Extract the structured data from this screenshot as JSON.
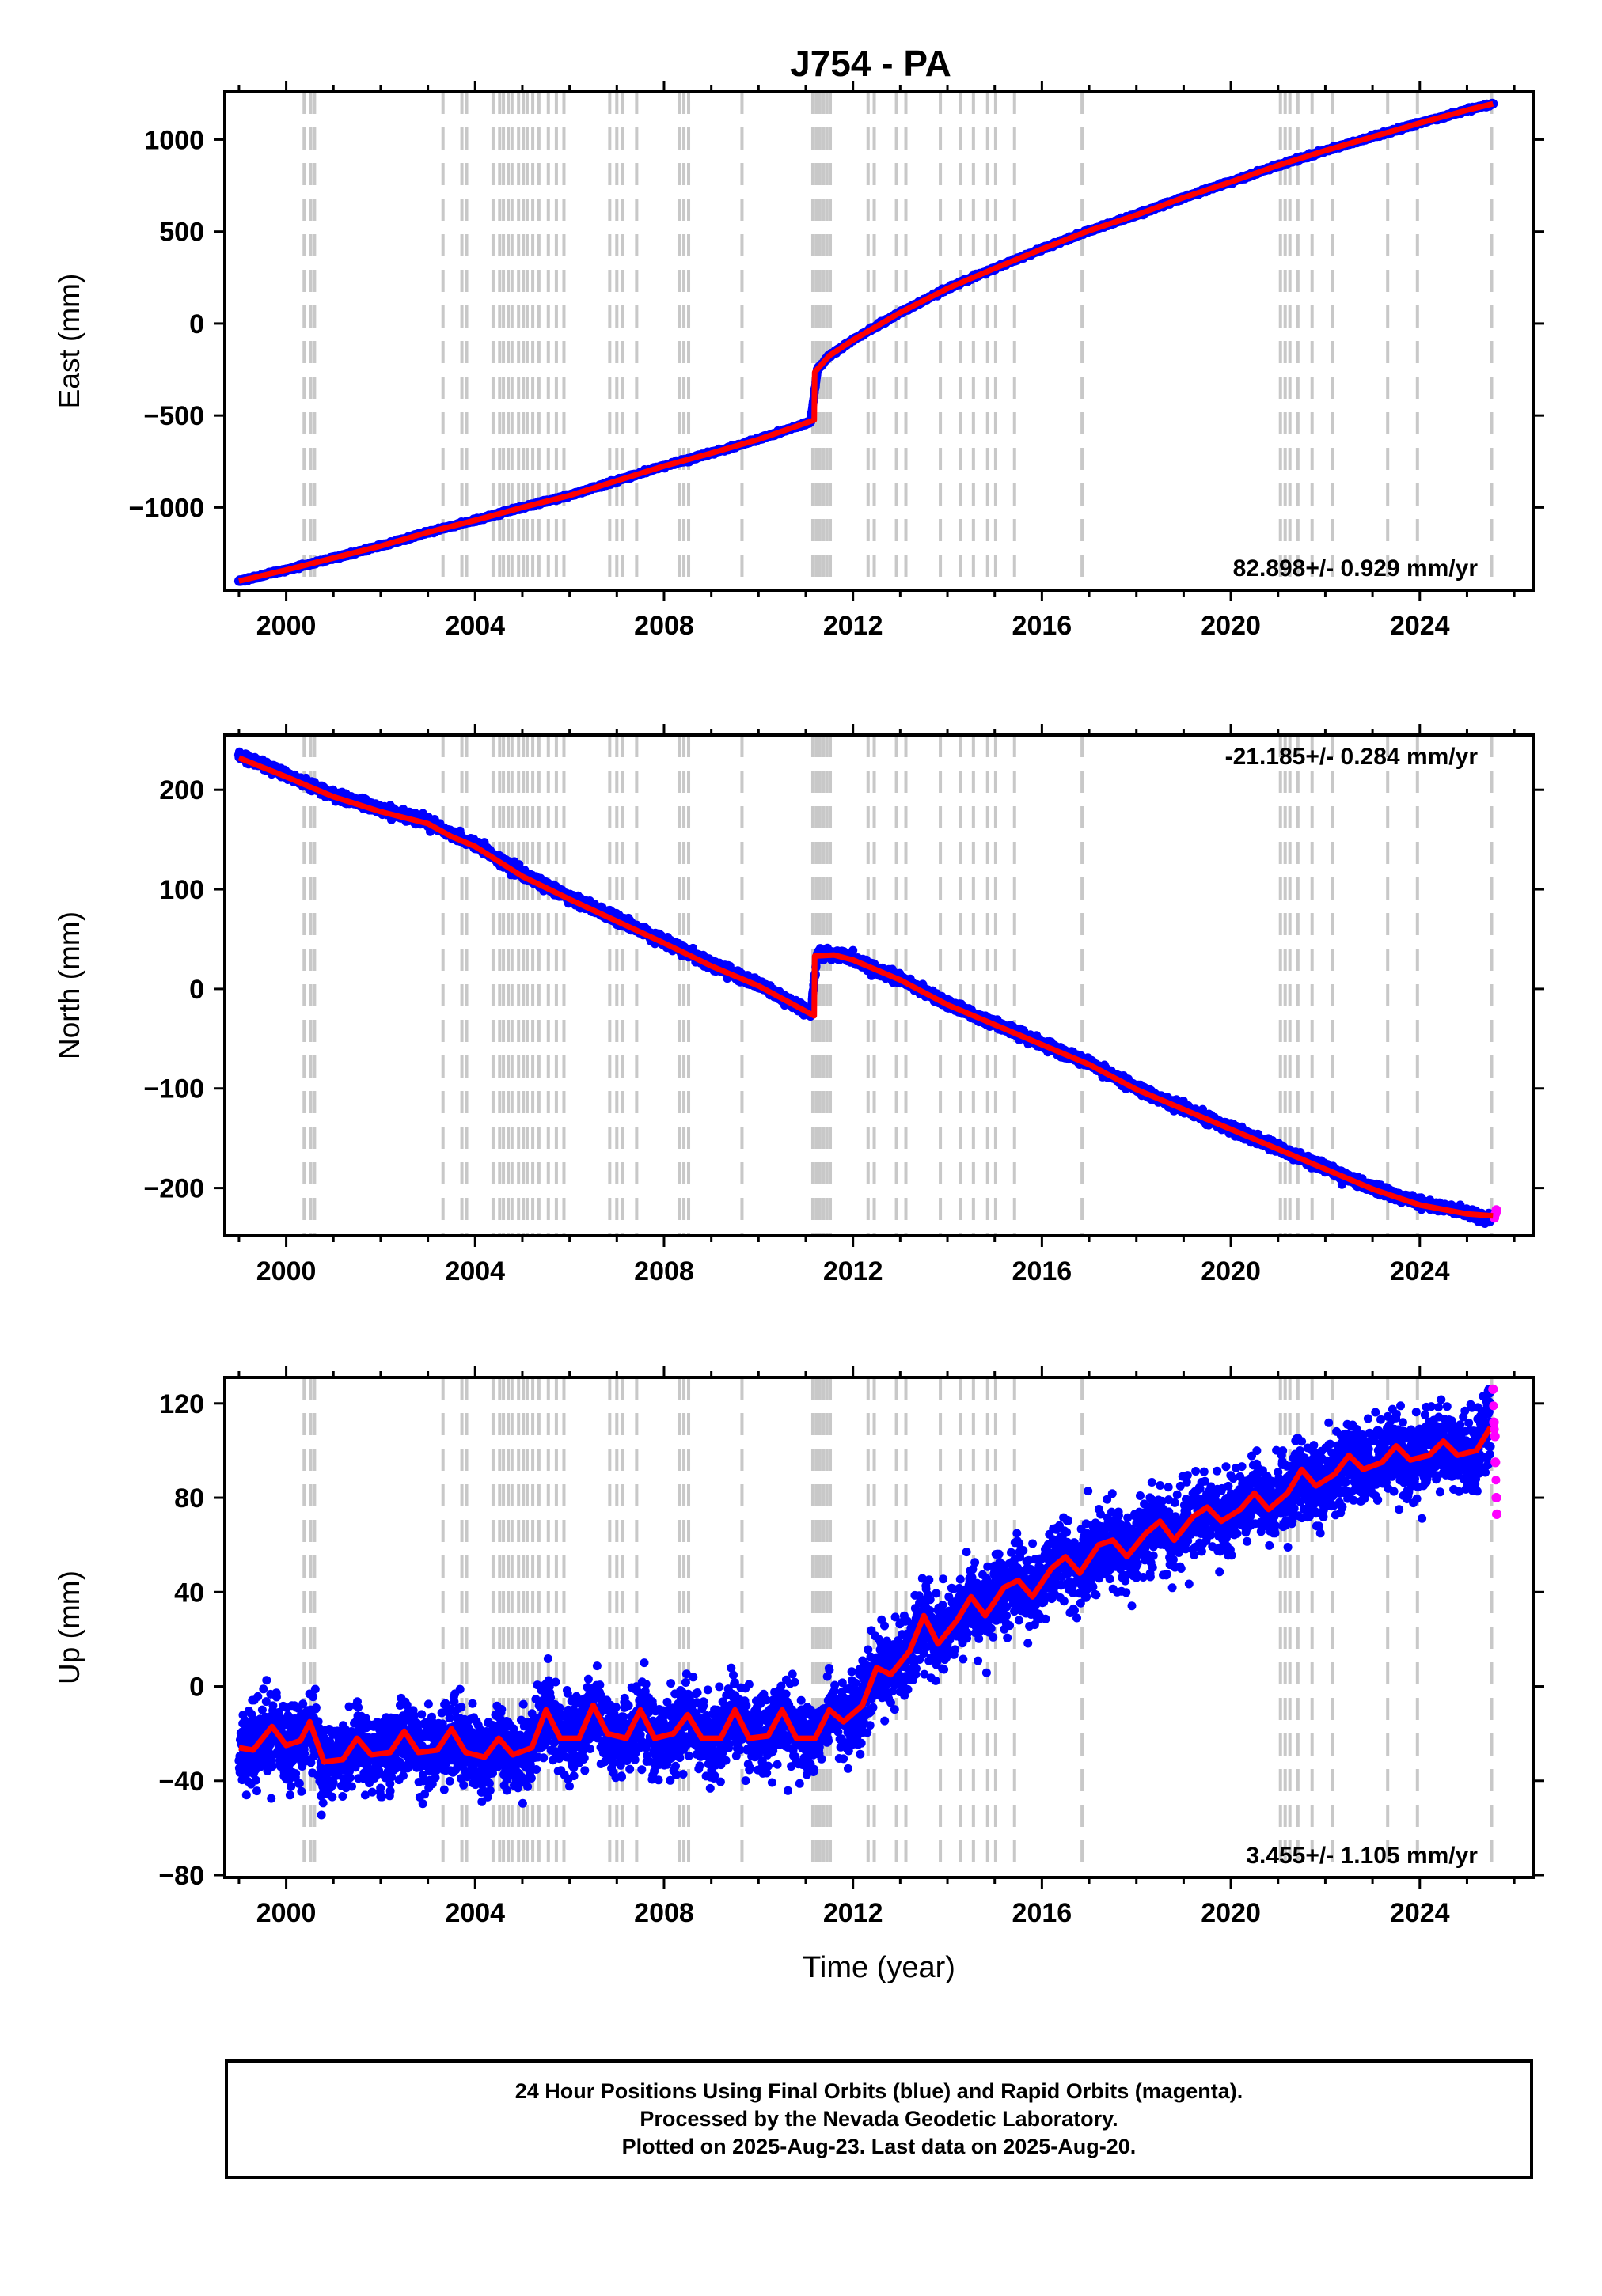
{
  "title": "J754 - PA",
  "colors": {
    "final": "#0000ff",
    "rapid": "#ff00ff",
    "model": "#ff0000",
    "event_line": "#c8c8c8",
    "frame": "#000000"
  },
  "chart_data": [
    {
      "type": "scatter",
      "ylabel": "East (mm)",
      "xlabel": "",
      "xlim": [
        1998.7,
        2026.4
      ],
      "ylim": [
        -1450,
        1260
      ],
      "xticks": [
        2000,
        2004,
        2008,
        2012,
        2016,
        2020,
        2024
      ],
      "yticks": [
        -1000,
        -500,
        0,
        500,
        1000
      ],
      "yticklabels": [
        "−1000",
        "−500",
        "0",
        "500",
        "1000"
      ],
      "rate_label": "82.898+/- 0.929 mm/yr",
      "rate_position": "bottom-right",
      "series": [
        {
          "style": "points",
          "color": "final",
          "x": [
            1999.0,
            2000.0,
            2001.0,
            2002.0,
            2003.0,
            2004.0,
            2005.0,
            2006.0,
            2007.0,
            2008.0,
            2009.0,
            2010.0,
            2011.1,
            2011.25,
            2011.5,
            2012.0,
            2013.0,
            2014.0,
            2015.0,
            2016.0,
            2017.0,
            2018.0,
            2019.0,
            2020.0,
            2021.0,
            2022.0,
            2023.0,
            2024.0,
            2025.0,
            2025.55
          ],
          "y": [
            -1400,
            -1340,
            -1275,
            -1210,
            -1135,
            -1070,
            -1000,
            -935,
            -855,
            -775,
            -705,
            -630,
            -535,
            -250,
            -175,
            -90,
            60,
            190,
            300,
            405,
            505,
            590,
            685,
            770,
            860,
            940,
            1015,
            1090,
            1160,
            1195
          ]
        },
        {
          "style": "line",
          "color": "model",
          "x": [
            1999.0,
            2000.0,
            2001.0,
            2002.0,
            2003.0,
            2004.0,
            2005.0,
            2006.0,
            2007.0,
            2008.0,
            2009.0,
            2010.0,
            2011.18,
            2011.19,
            2011.5,
            2012.0,
            2013.0,
            2014.0,
            2015.0,
            2016.0,
            2017.0,
            2018.0,
            2019.0,
            2020.0,
            2021.0,
            2022.0,
            2023.0,
            2024.0,
            2025.0,
            2025.55
          ],
          "y": [
            -1400,
            -1340,
            -1275,
            -1210,
            -1135,
            -1070,
            -1000,
            -935,
            -855,
            -775,
            -705,
            -630,
            -525,
            -265,
            -175,
            -90,
            60,
            190,
            300,
            405,
            505,
            590,
            685,
            770,
            860,
            940,
            1015,
            1090,
            1160,
            1195
          ]
        }
      ]
    },
    {
      "type": "scatter",
      "ylabel": "North (mm)",
      "xlabel": "",
      "xlim": [
        1998.7,
        2026.4
      ],
      "ylim": [
        -248,
        255
      ],
      "xticks": [
        2000,
        2004,
        2008,
        2012,
        2016,
        2020,
        2024
      ],
      "yticks": [
        -200,
        -100,
        0,
        100,
        200
      ],
      "yticklabels": [
        "−200",
        "−100",
        "0",
        "100",
        "200"
      ],
      "rate_label": "-21.185+/- 0.284 mm/yr",
      "rate_position": "top-right",
      "series": [
        {
          "style": "points",
          "color": "final",
          "x": [
            1999.0,
            2000.0,
            2001.0,
            2002.0,
            2003.0,
            2003.5,
            2004.0,
            2005.0,
            2006.0,
            2007.0,
            2008.0,
            2009.0,
            2010.0,
            2011.1,
            2011.25,
            2011.6,
            2012.0,
            2013.0,
            2014.0,
            2015.0,
            2016.0,
            2017.0,
            2018.0,
            2019.0,
            2020.0,
            2021.0,
            2022.0,
            2023.0,
            2024.0,
            2025.0,
            2025.5
          ],
          "y": [
            235,
            215,
            195,
            180,
            168,
            155,
            145,
            115,
            92,
            70,
            48,
            25,
            5,
            -25,
            35,
            35,
            30,
            10,
            -15,
            -35,
            -55,
            -75,
            -100,
            -120,
            -140,
            -160,
            -180,
            -200,
            -215,
            -225,
            -232
          ]
        },
        {
          "style": "points",
          "color": "rapid",
          "x": [
            2025.58,
            2025.6,
            2025.62
          ],
          "y": [
            -230,
            -226,
            -222
          ]
        },
        {
          "style": "line",
          "color": "model",
          "x": [
            1999.0,
            2000.0,
            2001.0,
            2002.0,
            2003.0,
            2003.5,
            2004.0,
            2005.0,
            2006.0,
            2007.0,
            2008.0,
            2009.0,
            2010.0,
            2011.18,
            2011.19,
            2011.6,
            2012.0,
            2013.0,
            2014.0,
            2015.0,
            2016.0,
            2017.0,
            2018.0,
            2019.0,
            2020.0,
            2021.0,
            2022.0,
            2023.0,
            2024.0,
            2025.0,
            2025.55
          ],
          "y": [
            232,
            213,
            193,
            178,
            166,
            153,
            143,
            113,
            90,
            68,
            46,
            23,
            3,
            -27,
            33,
            34,
            29,
            9,
            -16,
            -36,
            -56,
            -76,
            -101,
            -121,
            -141,
            -161,
            -181,
            -201,
            -217,
            -226,
            -228
          ]
        }
      ]
    },
    {
      "type": "scatter",
      "ylabel": "Up (mm)",
      "xlabel": "Time (year)",
      "xlim": [
        1998.7,
        2026.4
      ],
      "ylim": [
        -81,
        131
      ],
      "xticks": [
        2000,
        2004,
        2008,
        2012,
        2016,
        2020,
        2024
      ],
      "yticks": [
        -80,
        -40,
        0,
        40,
        80,
        120
      ],
      "yticklabels": [
        "−80",
        "−40",
        "0",
        "40",
        "80",
        "120"
      ],
      "rate_label": "3.455+/- 1.105 mm/yr",
      "rate_position": "bottom-right",
      "noise_sd_mm": 8,
      "series": [
        {
          "style": "line",
          "color": "model",
          "x": [
            1999.0,
            1999.3,
            1999.7,
            2000.0,
            2000.3,
            2000.5,
            2000.8,
            2001.2,
            2001.5,
            2001.8,
            2002.2,
            2002.5,
            2002.8,
            2003.2,
            2003.5,
            2003.8,
            2004.2,
            2004.5,
            2004.8,
            2005.2,
            2005.5,
            2005.8,
            2006.2,
            2006.5,
            2006.8,
            2007.2,
            2007.5,
            2007.8,
            2008.2,
            2008.5,
            2008.8,
            2009.2,
            2009.5,
            2009.8,
            2010.2,
            2010.5,
            2010.8,
            2011.2,
            2011.5,
            2011.8,
            2012.2,
            2012.5,
            2012.8,
            2013.2,
            2013.5,
            2013.8,
            2014.2,
            2014.5,
            2014.8,
            2015.2,
            2015.5,
            2015.8,
            2016.2,
            2016.5,
            2016.8,
            2017.2,
            2017.5,
            2017.8,
            2018.2,
            2018.5,
            2018.8,
            2019.2,
            2019.5,
            2019.8,
            2020.2,
            2020.5,
            2020.8,
            2021.2,
            2021.5,
            2021.8,
            2022.2,
            2022.5,
            2022.8,
            2023.2,
            2023.5,
            2023.8,
            2024.2,
            2024.5,
            2024.8,
            2025.2,
            2025.5
          ],
          "y": [
            -26,
            -27,
            -17,
            -25,
            -23,
            -15,
            -32,
            -31,
            -22,
            -29,
            -28,
            -19,
            -28,
            -27,
            -18,
            -28,
            -30,
            -22,
            -29,
            -26,
            -10,
            -22,
            -22,
            -8,
            -20,
            -22,
            -10,
            -22,
            -20,
            -12,
            -22,
            -22,
            -10,
            -22,
            -21,
            -10,
            -22,
            -22,
            -10,
            -15,
            -8,
            8,
            5,
            15,
            30,
            18,
            28,
            38,
            30,
            42,
            45,
            38,
            50,
            55,
            48,
            60,
            62,
            55,
            65,
            70,
            62,
            72,
            76,
            70,
            75,
            82,
            75,
            82,
            92,
            85,
            90,
            98,
            92,
            95,
            102,
            96,
            98,
            104,
            98,
            100,
            110
          ]
        },
        {
          "style": "points",
          "color": "rapid",
          "x": [
            2025.55,
            2025.57,
            2025.59,
            2025.6,
            2025.62,
            2025.63
          ],
          "y": [
            126,
            112,
            106,
            95,
            80,
            73
          ]
        }
      ]
    }
  ],
  "event_lines": [
    2000.38,
    2000.52,
    2000.6,
    2003.32,
    2003.72,
    2003.82,
    2004.38,
    2004.52,
    2004.6,
    2004.7,
    2004.78,
    2004.92,
    2005.02,
    2005.1,
    2005.22,
    2005.35,
    2005.55,
    2005.72,
    2005.88,
    2006.85,
    2007.0,
    2007.12,
    2007.42,
    2008.32,
    2008.42,
    2008.52,
    2009.65,
    2011.15,
    2011.22,
    2011.3,
    2011.38,
    2011.45,
    2011.52,
    2012.32,
    2012.45,
    2012.92,
    2013.12,
    2013.85,
    2014.28,
    2014.55,
    2014.85,
    2015.02,
    2015.42,
    2016.85,
    2021.05,
    2021.15,
    2021.25,
    2021.42,
    2021.72,
    2022.15,
    2023.32,
    2023.95,
    2025.52
  ],
  "footer": {
    "line1": "24 Hour Positions Using Final Orbits (blue) and Rapid Orbits (magenta).",
    "line2": "Processed by the Nevada Geodetic Laboratory.",
    "line3": "Plotted on 2025-Aug-23. Last data on 2025-Aug-20."
  }
}
